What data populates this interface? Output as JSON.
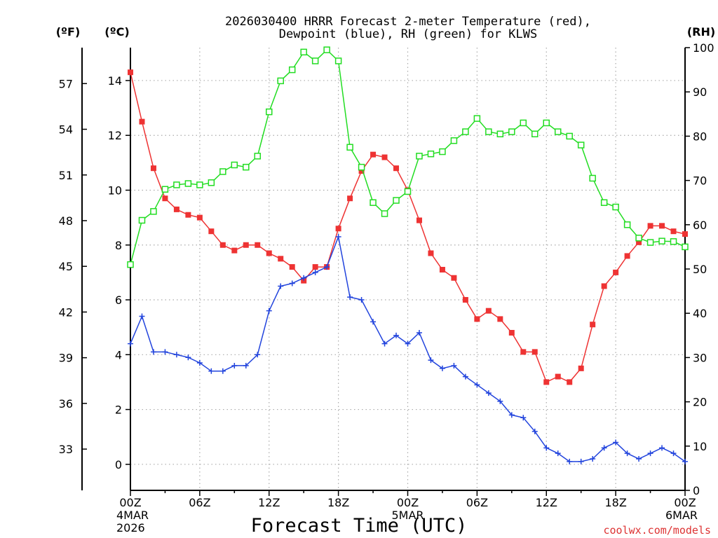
{
  "chart_data": {
    "type": "line",
    "title": "2026030400 HRRR Forecast 2-meter Temperature (red),",
    "subtitle": "Dewpoint (blue), RH (green) for KLWS",
    "xlabel": "Forecast Time (UTC)",
    "credit": "coolwx.com/models",
    "unit_labels": {
      "fahrenheit": "(ºF)",
      "celsius": "(ºC)",
      "rh": "(RH)"
    },
    "x_range_hours": [
      0,
      48
    ],
    "x_ticks": [
      {
        "hour": 0,
        "label": "00Z",
        "sub1": "4MAR",
        "sub2": "2026"
      },
      {
        "hour": 6,
        "label": "06Z",
        "sub1": "",
        "sub2": ""
      },
      {
        "hour": 12,
        "label": "12Z",
        "sub1": "",
        "sub2": ""
      },
      {
        "hour": 18,
        "label": "18Z",
        "sub1": "",
        "sub2": ""
      },
      {
        "hour": 24,
        "label": "00Z",
        "sub1": "5MAR",
        "sub2": ""
      },
      {
        "hour": 30,
        "label": "06Z",
        "sub1": "",
        "sub2": ""
      },
      {
        "hour": 36,
        "label": "12Z",
        "sub1": "",
        "sub2": ""
      },
      {
        "hour": 42,
        "label": "18Z",
        "sub1": "",
        "sub2": ""
      },
      {
        "hour": 48,
        "label": "00Z",
        "sub1": "6MAR",
        "sub2": ""
      }
    ],
    "celsius_axis": {
      "ylim": [
        -0.95,
        15.2
      ],
      "ticks": [
        0,
        2,
        4,
        6,
        8,
        10,
        12,
        14
      ]
    },
    "fahrenheit_axis": {
      "ticks": [
        33,
        36,
        39,
        42,
        45,
        48,
        51,
        54,
        57
      ]
    },
    "rh_axis": {
      "ylim": [
        0,
        100
      ],
      "ticks": [
        0,
        10,
        20,
        30,
        40,
        50,
        60,
        70,
        80,
        90,
        100
      ]
    },
    "grid": true,
    "series": [
      {
        "name": "Temperature",
        "color": "#ee3333",
        "marker": "filled-square",
        "axis": "celsius",
        "x": [
          0,
          1,
          2,
          3,
          4,
          5,
          6,
          7,
          8,
          9,
          10,
          11,
          12,
          13,
          14,
          15,
          16,
          17,
          18,
          19,
          20,
          21,
          22,
          23,
          24,
          25,
          26,
          27,
          28,
          29,
          30,
          31,
          32,
          33,
          34,
          35,
          36,
          37,
          38,
          39,
          40,
          41,
          42,
          43,
          44,
          45,
          46,
          47,
          48
        ],
        "values": [
          14.3,
          12.5,
          10.8,
          9.7,
          9.3,
          9.1,
          9.0,
          8.5,
          8.0,
          7.8,
          8.0,
          8.0,
          7.7,
          7.5,
          7.2,
          6.7,
          7.2,
          7.2,
          8.6,
          9.7,
          10.7,
          11.3,
          11.2,
          10.8,
          10.0,
          8.9,
          7.7,
          7.1,
          6.8,
          6.0,
          5.3,
          5.6,
          5.3,
          4.8,
          4.1,
          4.1,
          3.0,
          3.2,
          3.0,
          3.5,
          5.1,
          6.5,
          7.0,
          7.6,
          8.1,
          8.7,
          8.7,
          8.5,
          8.4
        ]
      },
      {
        "name": "Dewpoint",
        "color": "#2244dd",
        "marker": "plus",
        "axis": "celsius",
        "x": [
          0,
          1,
          2,
          3,
          4,
          5,
          6,
          7,
          8,
          9,
          10,
          11,
          12,
          13,
          14,
          15,
          16,
          17,
          18,
          19,
          20,
          21,
          22,
          23,
          24,
          25,
          26,
          27,
          28,
          29,
          30,
          31,
          32,
          33,
          34,
          35,
          36,
          37,
          38,
          39,
          40,
          41,
          42,
          43,
          44,
          45,
          46,
          47,
          48
        ],
        "values": [
          4.4,
          5.4,
          4.1,
          4.1,
          4.0,
          3.9,
          3.7,
          3.4,
          3.4,
          3.6,
          3.6,
          4.0,
          5.6,
          6.5,
          6.6,
          6.8,
          7.0,
          7.2,
          8.3,
          6.1,
          6.0,
          5.2,
          4.4,
          4.7,
          4.4,
          4.8,
          3.8,
          3.5,
          3.6,
          3.2,
          2.9,
          2.6,
          2.3,
          1.8,
          1.7,
          1.2,
          0.6,
          0.4,
          0.1,
          0.1,
          0.2,
          0.6,
          0.8,
          0.4,
          0.2,
          0.4,
          0.6,
          0.4,
          0.1
        ]
      },
      {
        "name": "RH",
        "color": "#22dd22",
        "marker": "open-square",
        "axis": "rh",
        "x": [
          0,
          1,
          2,
          3,
          4,
          5,
          6,
          7,
          8,
          9,
          10,
          11,
          12,
          13,
          14,
          15,
          16,
          17,
          18,
          19,
          20,
          21,
          22,
          23,
          24,
          25,
          26,
          27,
          28,
          29,
          30,
          31,
          32,
          33,
          34,
          35,
          36,
          37,
          38,
          39,
          40,
          41,
          42,
          43,
          44,
          45,
          46,
          47,
          48
        ],
        "values": [
          51,
          61,
          63,
          68,
          69,
          69.3,
          69,
          69.5,
          72,
          73.5,
          73,
          75.5,
          85.5,
          92.5,
          95,
          99,
          97,
          99.5,
          97,
          77.5,
          73,
          65,
          62.5,
          65.5,
          67.5,
          75.5,
          76,
          76.5,
          79,
          81,
          84,
          81,
          80.5,
          81,
          83,
          80.5,
          83,
          81,
          80,
          78,
          70.5,
          65,
          64,
          60,
          57,
          56,
          56.3,
          56.2,
          55
        ]
      }
    ]
  }
}
